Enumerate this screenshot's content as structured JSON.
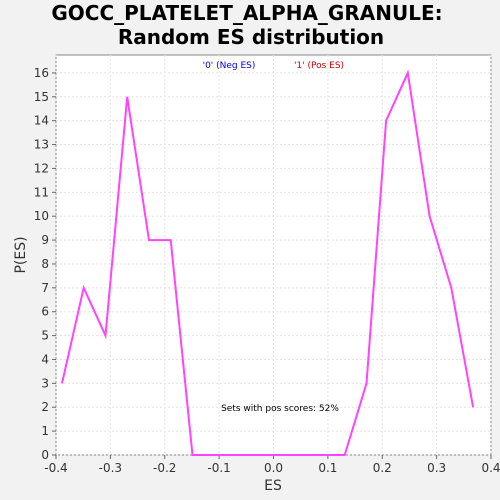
{
  "chart_data": {
    "type": "line",
    "title_line1": "GOCC_PLATELET_ALPHA_GRANULE:",
    "title_line2": "Random ES distribution",
    "xlabel": "ES",
    "ylabel": "P(ES)",
    "xlim": [
      -0.4,
      0.4
    ],
    "ylim": [
      0,
      16.75
    ],
    "x_ticks": [
      -0.4,
      -0.3,
      -0.2,
      -0.1,
      0.0,
      0.1,
      0.2,
      0.3,
      0.4
    ],
    "x_tick_labels": [
      "-0.4",
      "-0.3",
      "-0.2",
      "-0.1",
      "0.0",
      "0.1",
      "0.2",
      "0.3",
      "0.4"
    ],
    "y_ticks": [
      0,
      1,
      2,
      3,
      4,
      5,
      6,
      7,
      8,
      9,
      10,
      11,
      12,
      13,
      14,
      15,
      16
    ],
    "y_tick_labels": [
      "0",
      "1",
      "2",
      "3",
      "4",
      "5",
      "6",
      "7",
      "8",
      "9",
      "10",
      "11",
      "12",
      "13",
      "14",
      "15",
      "16"
    ],
    "grid": true,
    "legend": [
      {
        "label": "'0' (Neg ES)",
        "color": "#0000cc"
      },
      {
        "label": "'1' (Pos ES)",
        "color": "#cc0000"
      }
    ],
    "legend_placement": "top-center",
    "annotation": "Sets with pos scores: 52%",
    "series": [
      {
        "color": "#ff44ff",
        "x": [
          -0.389,
          -0.349,
          -0.309,
          -0.269,
          -0.229,
          -0.189,
          -0.149,
          -0.109,
          -0.069,
          -0.029,
          0.011,
          0.051,
          0.091,
          0.131,
          0.171,
          0.207,
          0.247,
          0.287,
          0.327,
          0.367
        ],
        "y": [
          3,
          7,
          5,
          15,
          9,
          9,
          0,
          0,
          0,
          0,
          0,
          0,
          0,
          0,
          3,
          14,
          16,
          10,
          7,
          2
        ]
      }
    ]
  }
}
